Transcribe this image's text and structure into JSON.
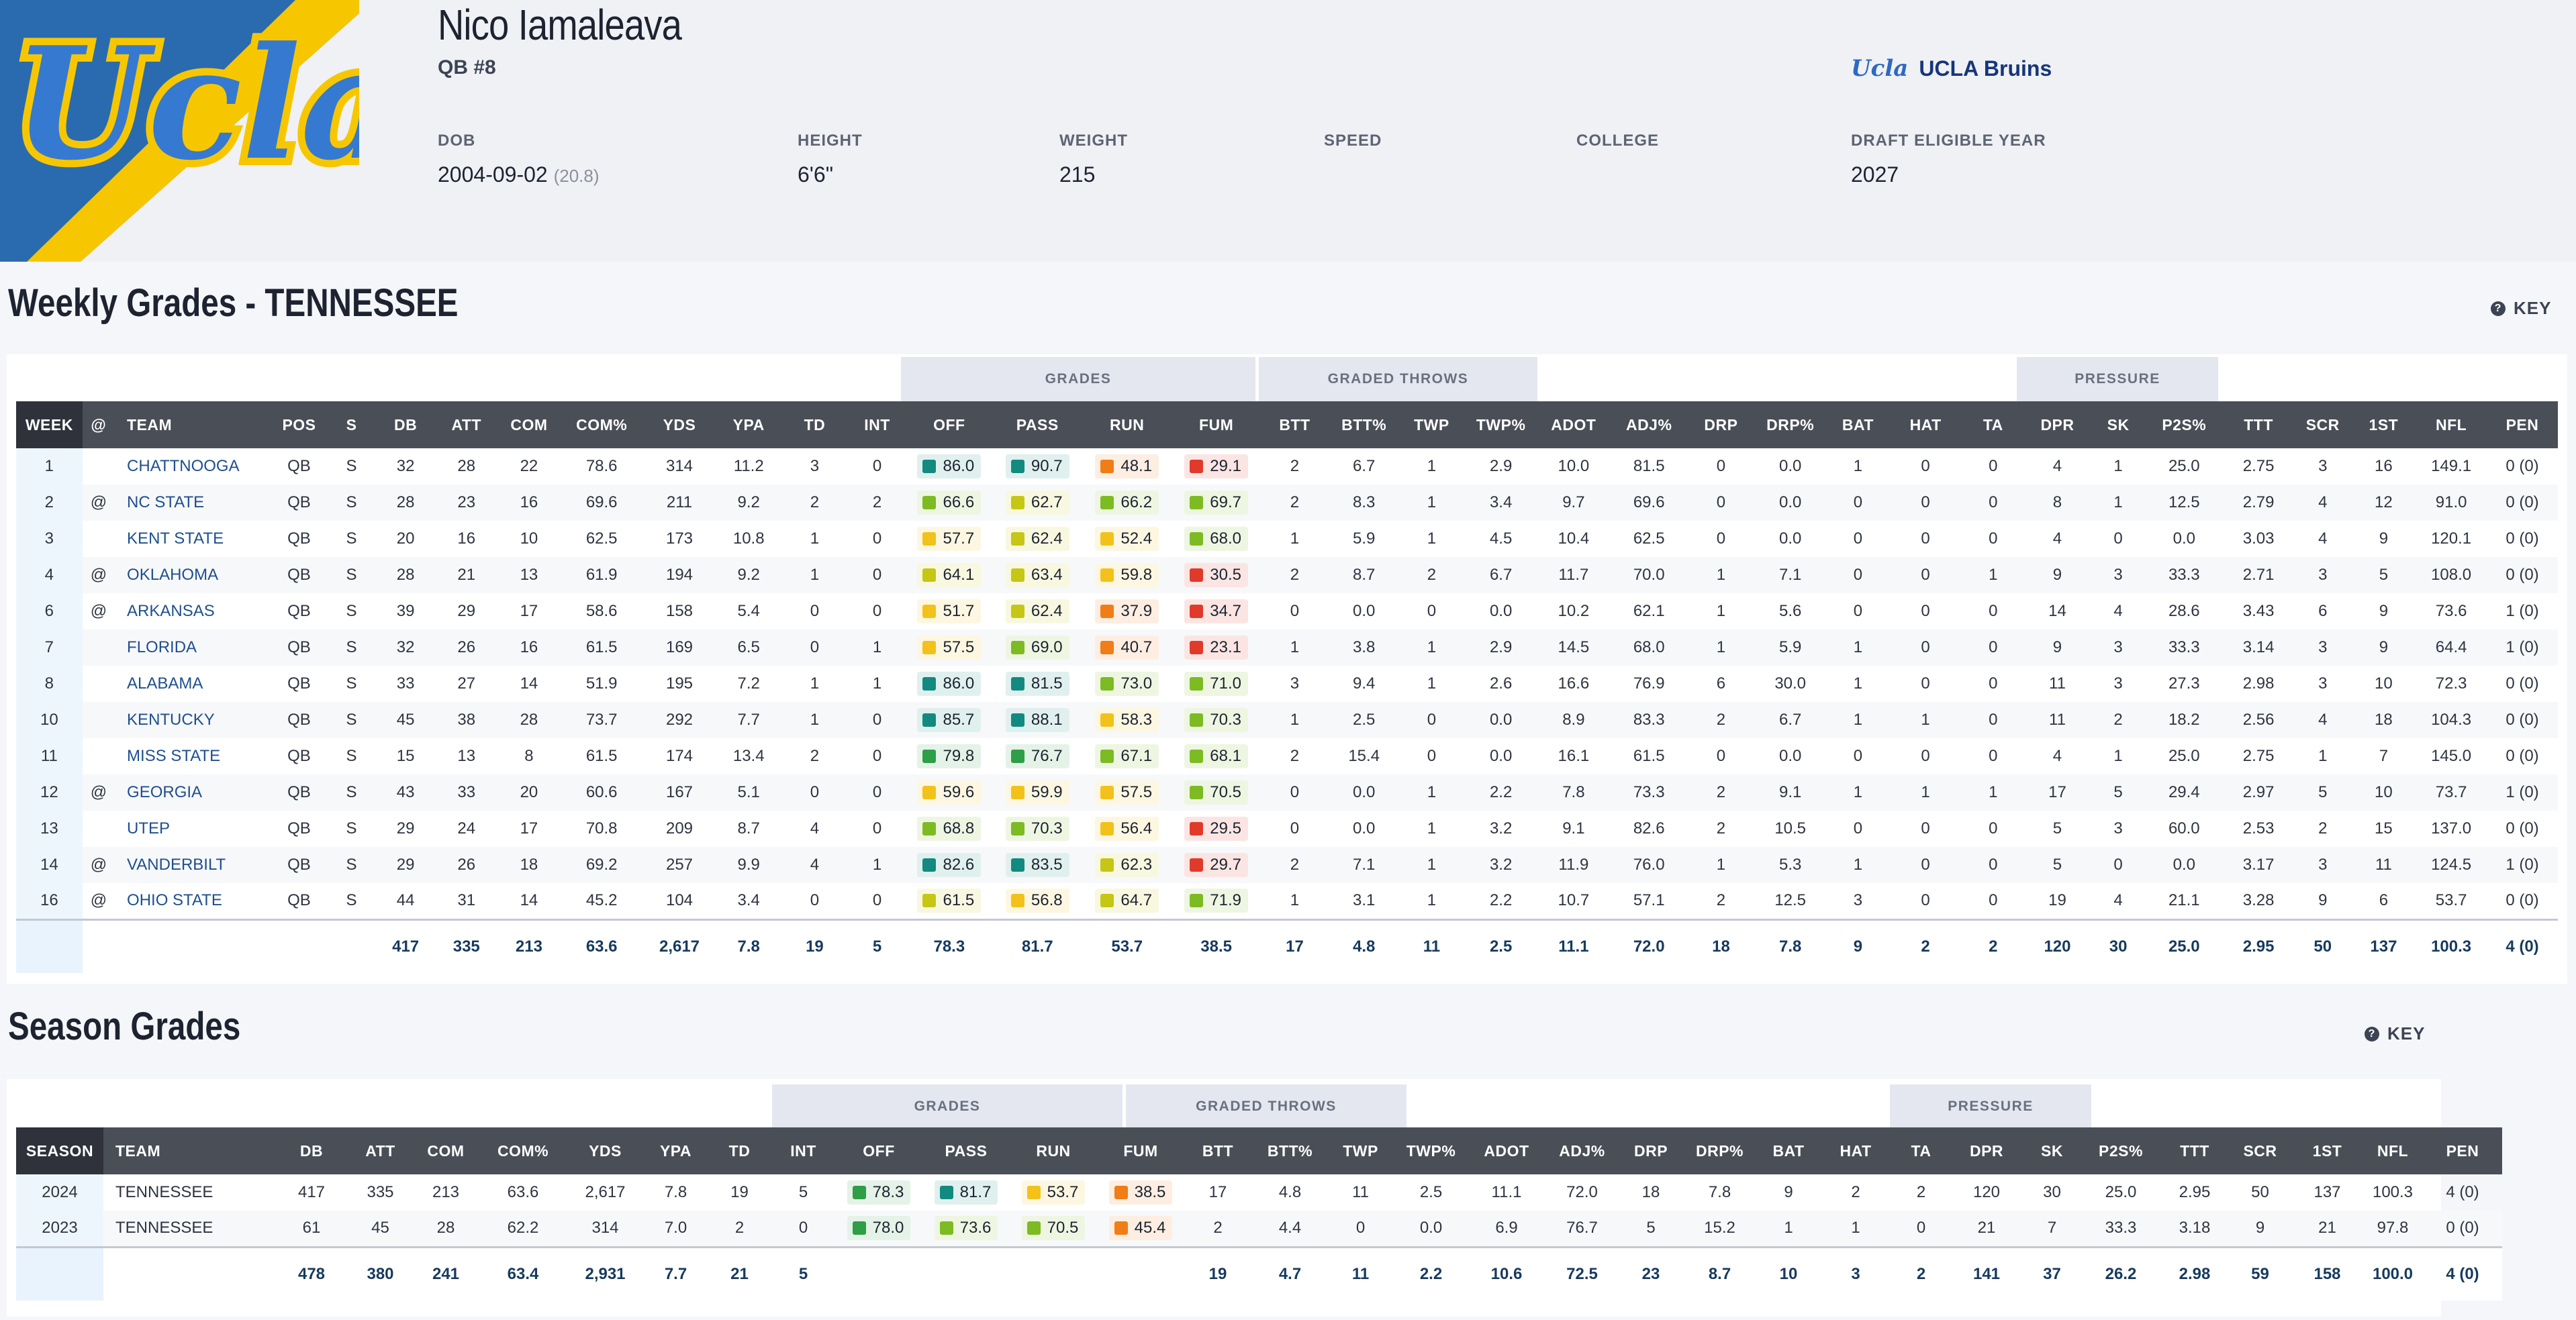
{
  "player": {
    "name": "Nico Iamaleava",
    "position": "QB #8",
    "team": "UCLA Bruins",
    "team_logo_text": "Ucla",
    "info": [
      {
        "label": "DOB",
        "value": "2004-09-02",
        "extra": "(20.8)"
      },
      {
        "label": "HEIGHT",
        "value": "6'6\""
      },
      {
        "label": "WEIGHT",
        "value": "215"
      },
      {
        "label": "SPEED",
        "value": ""
      },
      {
        "label": "COLLEGE",
        "value": ""
      },
      {
        "label": "DRAFT ELIGIBLE YEAR",
        "value": "2027"
      }
    ]
  },
  "colors": {
    "elite": "#128a80",
    "high": "#2e9e47",
    "good": "#7dbb22",
    "avg": "#c6c614",
    "below": "#f2c21a",
    "low": "#f07d16",
    "poor": "#e03a2a"
  },
  "weekly": {
    "title": "Weekly Grades - TENNESSEE",
    "key_label": "KEY",
    "groups": [
      "GRADES",
      "GRADED THROWS",
      "PRESSURE"
    ],
    "headers": [
      "WEEK",
      "@",
      "TEAM",
      "POS",
      "S",
      "DB",
      "ATT",
      "COM",
      "COM%",
      "YDS",
      "YPA",
      "TD",
      "INT",
      "OFF",
      "PASS",
      "RUN",
      "FUM",
      "BTT",
      "BTT%",
      "TWP",
      "TWP%",
      "ADOT",
      "ADJ%",
      "DRP",
      "DRP%",
      "BAT",
      "HAT",
      "TA",
      "DPR",
      "SK",
      "P2S%",
      "TTT",
      "SCR",
      "1ST",
      "NFL",
      "PEN"
    ],
    "rows": [
      [
        "1",
        "",
        "CHATTNOOGA",
        "QB",
        "S",
        "32",
        "28",
        "22",
        "78.6",
        "314",
        "11.2",
        "3",
        "0",
        "86.0",
        "90.7",
        "48.1",
        "29.1",
        "2",
        "6.7",
        "1",
        "2.9",
        "10.0",
        "81.5",
        "0",
        "0.0",
        "1",
        "0",
        "0",
        "4",
        "1",
        "25.0",
        "2.75",
        "3",
        "16",
        "149.1",
        "0 (0)"
      ],
      [
        "2",
        "@",
        "NC STATE",
        "QB",
        "S",
        "28",
        "23",
        "16",
        "69.6",
        "211",
        "9.2",
        "2",
        "2",
        "66.6",
        "62.7",
        "66.2",
        "69.7",
        "2",
        "8.3",
        "1",
        "3.4",
        "9.7",
        "69.6",
        "0",
        "0.0",
        "0",
        "0",
        "0",
        "8",
        "1",
        "12.5",
        "2.79",
        "4",
        "12",
        "91.0",
        "0 (0)"
      ],
      [
        "3",
        "",
        "KENT STATE",
        "QB",
        "S",
        "20",
        "16",
        "10",
        "62.5",
        "173",
        "10.8",
        "1",
        "0",
        "57.7",
        "62.4",
        "52.4",
        "68.0",
        "1",
        "5.9",
        "1",
        "4.5",
        "10.4",
        "62.5",
        "0",
        "0.0",
        "0",
        "0",
        "0",
        "4",
        "0",
        "0.0",
        "3.03",
        "4",
        "9",
        "120.1",
        "0 (0)"
      ],
      [
        "4",
        "@",
        "OKLAHOMA",
        "QB",
        "S",
        "28",
        "21",
        "13",
        "61.9",
        "194",
        "9.2",
        "1",
        "0",
        "64.1",
        "63.4",
        "59.8",
        "30.5",
        "2",
        "8.7",
        "2",
        "6.7",
        "11.7",
        "70.0",
        "1",
        "7.1",
        "0",
        "0",
        "1",
        "9",
        "3",
        "33.3",
        "2.71",
        "3",
        "5",
        "108.0",
        "0 (0)"
      ],
      [
        "6",
        "@",
        "ARKANSAS",
        "QB",
        "S",
        "39",
        "29",
        "17",
        "58.6",
        "158",
        "5.4",
        "0",
        "0",
        "51.7",
        "62.4",
        "37.9",
        "34.7",
        "0",
        "0.0",
        "0",
        "0.0",
        "10.2",
        "62.1",
        "1",
        "5.6",
        "0",
        "0",
        "0",
        "14",
        "4",
        "28.6",
        "3.43",
        "6",
        "9",
        "73.6",
        "1 (0)"
      ],
      [
        "7",
        "",
        "FLORIDA",
        "QB",
        "S",
        "32",
        "26",
        "16",
        "61.5",
        "169",
        "6.5",
        "0",
        "1",
        "57.5",
        "69.0",
        "40.7",
        "23.1",
        "1",
        "3.8",
        "1",
        "2.9",
        "14.5",
        "68.0",
        "1",
        "5.9",
        "1",
        "0",
        "0",
        "9",
        "3",
        "33.3",
        "3.14",
        "3",
        "9",
        "64.4",
        "1 (0)"
      ],
      [
        "8",
        "",
        "ALABAMA",
        "QB",
        "S",
        "33",
        "27",
        "14",
        "51.9",
        "195",
        "7.2",
        "1",
        "1",
        "86.0",
        "81.5",
        "73.0",
        "71.0",
        "3",
        "9.4",
        "1",
        "2.6",
        "16.6",
        "76.9",
        "6",
        "30.0",
        "1",
        "0",
        "0",
        "11",
        "3",
        "27.3",
        "2.98",
        "3",
        "10",
        "72.3",
        "0 (0)"
      ],
      [
        "10",
        "",
        "KENTUCKY",
        "QB",
        "S",
        "45",
        "38",
        "28",
        "73.7",
        "292",
        "7.7",
        "1",
        "0",
        "85.7",
        "88.1",
        "58.3",
        "70.3",
        "1",
        "2.5",
        "0",
        "0.0",
        "8.9",
        "83.3",
        "2",
        "6.7",
        "1",
        "1",
        "0",
        "11",
        "2",
        "18.2",
        "2.56",
        "4",
        "18",
        "104.3",
        "0 (0)"
      ],
      [
        "11",
        "",
        "MISS STATE",
        "QB",
        "S",
        "15",
        "13",
        "8",
        "61.5",
        "174",
        "13.4",
        "2",
        "0",
        "79.8",
        "76.7",
        "67.1",
        "68.1",
        "2",
        "15.4",
        "0",
        "0.0",
        "16.1",
        "61.5",
        "0",
        "0.0",
        "0",
        "0",
        "0",
        "4",
        "1",
        "25.0",
        "2.75",
        "1",
        "7",
        "145.0",
        "0 (0)"
      ],
      [
        "12",
        "@",
        "GEORGIA",
        "QB",
        "S",
        "43",
        "33",
        "20",
        "60.6",
        "167",
        "5.1",
        "0",
        "0",
        "59.6",
        "59.9",
        "57.5",
        "70.5",
        "0",
        "0.0",
        "1",
        "2.2",
        "7.8",
        "73.3",
        "2",
        "9.1",
        "1",
        "1",
        "1",
        "17",
        "5",
        "29.4",
        "2.97",
        "5",
        "10",
        "73.7",
        "1 (0)"
      ],
      [
        "13",
        "",
        "UTEP",
        "QB",
        "S",
        "29",
        "24",
        "17",
        "70.8",
        "209",
        "8.7",
        "4",
        "0",
        "68.8",
        "70.3",
        "56.4",
        "29.5",
        "0",
        "0.0",
        "1",
        "3.2",
        "9.1",
        "82.6",
        "2",
        "10.5",
        "0",
        "0",
        "0",
        "5",
        "3",
        "60.0",
        "2.53",
        "2",
        "15",
        "137.0",
        "0 (0)"
      ],
      [
        "14",
        "@",
        "VANDERBILT",
        "QB",
        "S",
        "29",
        "26",
        "18",
        "69.2",
        "257",
        "9.9",
        "4",
        "1",
        "82.6",
        "83.5",
        "62.3",
        "29.7",
        "2",
        "7.1",
        "1",
        "3.2",
        "11.9",
        "76.0",
        "1",
        "5.3",
        "1",
        "0",
        "0",
        "5",
        "0",
        "0.0",
        "3.17",
        "3",
        "11",
        "124.5",
        "1 (0)"
      ],
      [
        "16",
        "@",
        "OHIO STATE",
        "QB",
        "S",
        "44",
        "31",
        "14",
        "45.2",
        "104",
        "3.4",
        "0",
        "0",
        "61.5",
        "56.8",
        "64.7",
        "71.9",
        "1",
        "3.1",
        "1",
        "2.2",
        "10.7",
        "57.1",
        "2",
        "12.5",
        "3",
        "0",
        "0",
        "19",
        "4",
        "21.1",
        "3.28",
        "9",
        "6",
        "53.7",
        "0 (0)"
      ]
    ],
    "totals": [
      "",
      "",
      "",
      "",
      "",
      "417",
      "335",
      "213",
      "63.6",
      "2,617",
      "7.8",
      "19",
      "5",
      "78.3",
      "81.7",
      "53.7",
      "38.5",
      "17",
      "4.8",
      "11",
      "2.5",
      "11.1",
      "72.0",
      "18",
      "7.8",
      "9",
      "2",
      "2",
      "120",
      "30",
      "25.0",
      "2.95",
      "50",
      "137",
      "100.3",
      "4 (0)"
    ]
  },
  "season": {
    "title": "Season Grades",
    "key_label": "KEY",
    "groups": [
      "GRADES",
      "GRADED THROWS",
      "PRESSURE"
    ],
    "headers": [
      "SEASON",
      "TEAM",
      "DB",
      "ATT",
      "COM",
      "COM%",
      "YDS",
      "YPA",
      "TD",
      "INT",
      "OFF",
      "PASS",
      "RUN",
      "FUM",
      "BTT",
      "BTT%",
      "TWP",
      "TWP%",
      "ADOT",
      "ADJ%",
      "DRP",
      "DRP%",
      "BAT",
      "HAT",
      "TA",
      "DPR",
      "SK",
      "P2S%",
      "TTT",
      "SCR",
      "1ST",
      "NFL",
      "PEN"
    ],
    "rows": [
      [
        "2024",
        "TENNESSEE",
        "417",
        "335",
        "213",
        "63.6",
        "2,617",
        "7.8",
        "19",
        "5",
        "78.3",
        "81.7",
        "53.7",
        "38.5",
        "17",
        "4.8",
        "11",
        "2.5",
        "11.1",
        "72.0",
        "18",
        "7.8",
        "9",
        "2",
        "2",
        "120",
        "30",
        "25.0",
        "2.95",
        "50",
        "137",
        "100.3",
        "4 (0)"
      ],
      [
        "2023",
        "TENNESSEE",
        "61",
        "45",
        "28",
        "62.2",
        "314",
        "7.0",
        "2",
        "0",
        "78.0",
        "73.6",
        "70.5",
        "45.4",
        "2",
        "4.4",
        "0",
        "0.0",
        "6.9",
        "76.7",
        "5",
        "15.2",
        "1",
        "1",
        "0",
        "21",
        "7",
        "33.3",
        "3.18",
        "9",
        "21",
        "97.8",
        "0 (0)"
      ]
    ],
    "totals": [
      "",
      "",
      "478",
      "380",
      "241",
      "63.4",
      "2,931",
      "7.7",
      "21",
      "5",
      "",
      "",
      "",
      "",
      "19",
      "4.7",
      "11",
      "2.2",
      "10.6",
      "72.5",
      "23",
      "8.7",
      "10",
      "3",
      "2",
      "141",
      "37",
      "26.2",
      "2.98",
      "59",
      "158",
      "100.0",
      "4 (0)"
    ]
  }
}
